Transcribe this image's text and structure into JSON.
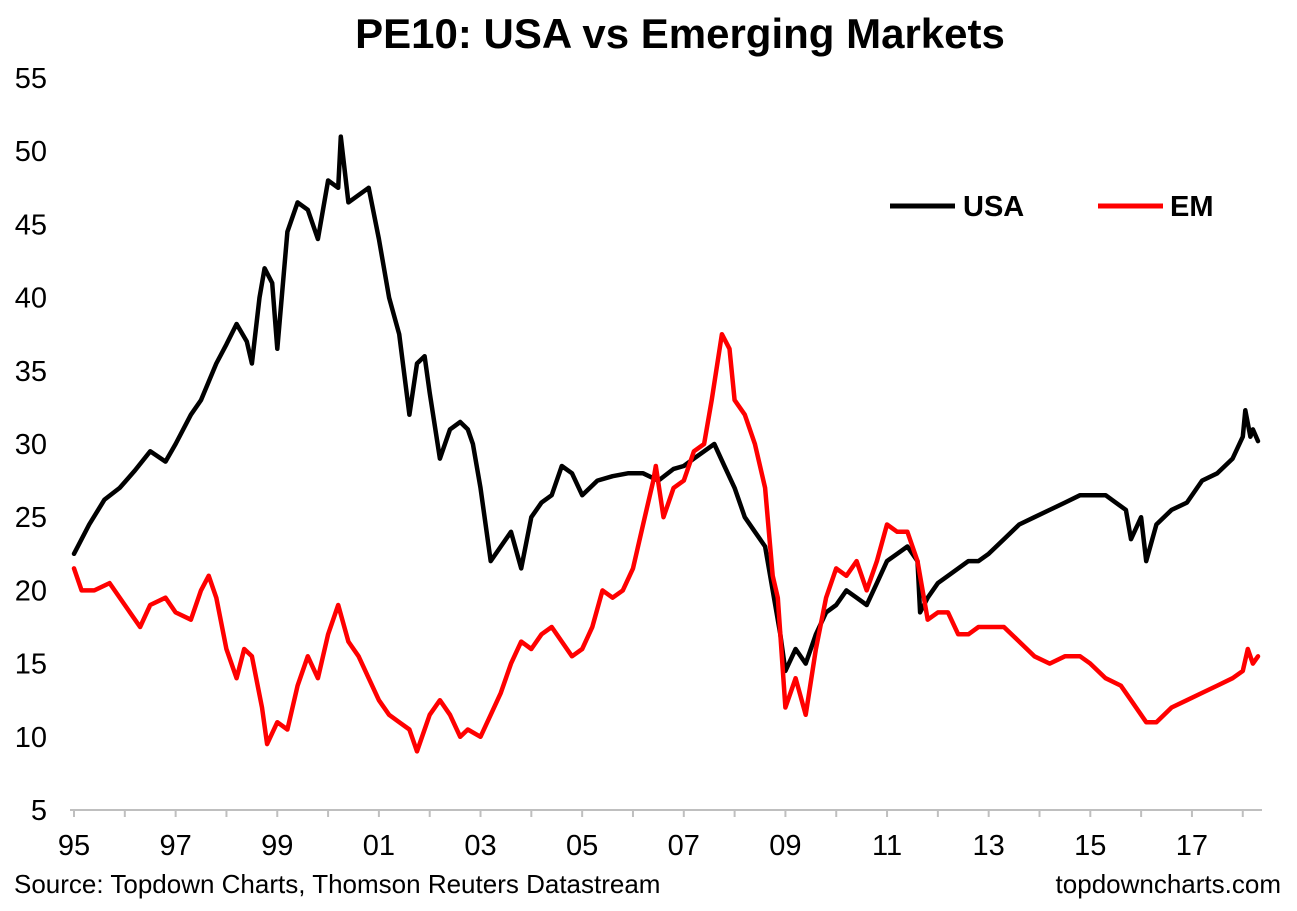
{
  "footer": {
    "source": "Source: Topdown Charts, Thomson Reuters Datastream",
    "brand": "topdowncharts.com"
  },
  "colors": {
    "usa": "#000000",
    "em": "#ff0000",
    "axis": "#bfbfbf",
    "text": "#000000"
  },
  "chart_data": {
    "type": "line",
    "title": "PE10: USA vs Emerging Markets",
    "xlabel": "",
    "ylabel": "",
    "ylim": [
      5,
      55
    ],
    "yticks": [
      "55",
      "50",
      "45",
      "40",
      "35",
      "30",
      "25",
      "20",
      "15",
      "10",
      "5"
    ],
    "xlim": [
      1995,
      2018.3
    ],
    "xticks": [
      {
        "value": 1995,
        "label": "95"
      },
      {
        "value": 1997,
        "label": "97"
      },
      {
        "value": 1999,
        "label": "99"
      },
      {
        "value": 2001,
        "label": "01"
      },
      {
        "value": 2003,
        "label": "03"
      },
      {
        "value": 2005,
        "label": "05"
      },
      {
        "value": 2007,
        "label": "07"
      },
      {
        "value": 2009,
        "label": "09"
      },
      {
        "value": 2011,
        "label": "11"
      },
      {
        "value": 2013,
        "label": "13"
      },
      {
        "value": 2015,
        "label": "15"
      },
      {
        "value": 2017,
        "label": "17"
      }
    ],
    "legend_position": "top-right",
    "series": [
      {
        "name": "USA",
        "color": "#000000",
        "x": [
          1995.0,
          1995.3,
          1995.6,
          1995.9,
          1996.2,
          1996.5,
          1996.8,
          1997.0,
          1997.3,
          1997.5,
          1997.8,
          1998.0,
          1998.2,
          1998.4,
          1998.5,
          1998.65,
          1998.75,
          1998.9,
          1999.0,
          1999.2,
          1999.4,
          1999.6,
          1999.8,
          2000.0,
          2000.2,
          2000.25,
          2000.4,
          2000.6,
          2000.8,
          2001.0,
          2001.2,
          2001.4,
          2001.6,
          2001.75,
          2001.9,
          2002.0,
          2002.2,
          2002.4,
          2002.6,
          2002.75,
          2002.85,
          2003.0,
          2003.2,
          2003.4,
          2003.6,
          2003.8,
          2004.0,
          2004.2,
          2004.4,
          2004.6,
          2004.8,
          2005.0,
          2005.3,
          2005.6,
          2005.9,
          2006.2,
          2006.5,
          2006.8,
          2007.0,
          2007.2,
          2007.4,
          2007.6,
          2007.8,
          2008.0,
          2008.2,
          2008.4,
          2008.6,
          2008.75,
          2008.9,
          2009.0,
          2009.2,
          2009.4,
          2009.6,
          2009.8,
          2010.0,
          2010.2,
          2010.4,
          2010.6,
          2010.8,
          2011.0,
          2011.2,
          2011.4,
          2011.6,
          2011.65,
          2011.8,
          2012.0,
          2012.2,
          2012.4,
          2012.6,
          2012.8,
          2013.0,
          2013.3,
          2013.6,
          2013.9,
          2014.2,
          2014.5,
          2014.8,
          2015.0,
          2015.3,
          2015.5,
          2015.7,
          2015.8,
          2016.0,
          2016.1,
          2016.3,
          2016.6,
          2016.9,
          2017.2,
          2017.5,
          2017.8,
          2018.0,
          2018.05,
          2018.15,
          2018.2,
          2018.3
        ],
        "values": [
          22.5,
          24.5,
          26.2,
          27.0,
          28.2,
          29.5,
          28.8,
          30.0,
          32.0,
          33.0,
          35.5,
          36.8,
          38.2,
          37.0,
          35.5,
          40.0,
          42.0,
          41.0,
          36.5,
          44.5,
          46.5,
          46.0,
          44.0,
          48.0,
          47.5,
          51.0,
          46.5,
          47.0,
          47.5,
          44.0,
          40.0,
          37.5,
          32.0,
          35.5,
          36.0,
          33.5,
          29.0,
          31.0,
          31.5,
          31.0,
          30.0,
          27.0,
          22.0,
          23.0,
          24.0,
          21.5,
          25.0,
          26.0,
          26.5,
          28.5,
          28.0,
          26.5,
          27.5,
          27.8,
          28.0,
          28.0,
          27.5,
          28.3,
          28.5,
          29.0,
          29.5,
          30.0,
          28.5,
          27.0,
          25.0,
          24.0,
          23.0,
          20.0,
          17.0,
          14.5,
          16.0,
          15.0,
          17.0,
          18.5,
          19.0,
          20.0,
          19.5,
          19.0,
          20.5,
          22.0,
          22.5,
          23.0,
          22.0,
          18.5,
          19.5,
          20.5,
          21.0,
          21.5,
          22.0,
          22.0,
          22.5,
          23.5,
          24.5,
          25.0,
          25.5,
          26.0,
          26.5,
          26.5,
          26.5,
          26.0,
          25.5,
          23.5,
          25.0,
          22.0,
          24.5,
          25.5,
          26.0,
          27.5,
          28.0,
          29.0,
          30.5,
          32.3,
          30.5,
          31.0,
          30.2
        ]
      },
      {
        "name": "EM",
        "color": "#ff0000",
        "x": [
          1995.0,
          1995.15,
          1995.4,
          1995.7,
          1996.0,
          1996.3,
          1996.5,
          1996.8,
          1997.0,
          1997.3,
          1997.5,
          1997.65,
          1997.8,
          1998.0,
          1998.2,
          1998.35,
          1998.5,
          1998.7,
          1998.8,
          1999.0,
          1999.2,
          1999.4,
          1999.6,
          1999.8,
          2000.0,
          2000.2,
          2000.4,
          2000.6,
          2000.8,
          2001.0,
          2001.2,
          2001.4,
          2001.6,
          2001.75,
          2001.9,
          2002.0,
          2002.2,
          2002.4,
          2002.6,
          2002.75,
          2003.0,
          2003.2,
          2003.4,
          2003.6,
          2003.8,
          2004.0,
          2004.2,
          2004.4,
          2004.6,
          2004.8,
          2005.0,
          2005.2,
          2005.4,
          2005.6,
          2005.8,
          2006.0,
          2006.2,
          2006.4,
          2006.45,
          2006.6,
          2006.8,
          2007.0,
          2007.2,
          2007.4,
          2007.55,
          2007.75,
          2007.9,
          2008.0,
          2008.2,
          2008.4,
          2008.6,
          2008.75,
          2008.85,
          2009.0,
          2009.2,
          2009.4,
          2009.6,
          2009.8,
          2010.0,
          2010.2,
          2010.4,
          2010.6,
          2010.8,
          2011.0,
          2011.2,
          2011.4,
          2011.6,
          2011.8,
          2012.0,
          2012.2,
          2012.4,
          2012.6,
          2012.8,
          2013.0,
          2013.3,
          2013.6,
          2013.9,
          2014.2,
          2014.5,
          2014.8,
          2015.0,
          2015.3,
          2015.6,
          2015.8,
          2016.0,
          2016.1,
          2016.3,
          2016.6,
          2016.9,
          2017.2,
          2017.5,
          2017.8,
          2018.0,
          2018.1,
          2018.2,
          2018.3
        ],
        "values": [
          21.5,
          20.0,
          20.0,
          20.5,
          19.0,
          17.5,
          19.0,
          19.5,
          18.5,
          18.0,
          20.0,
          21.0,
          19.5,
          16.0,
          14.0,
          16.0,
          15.5,
          12.0,
          9.5,
          11.0,
          10.5,
          13.5,
          15.5,
          14.0,
          17.0,
          19.0,
          16.5,
          15.5,
          14.0,
          12.5,
          11.5,
          11.0,
          10.5,
          9.0,
          10.5,
          11.5,
          12.5,
          11.5,
          10.0,
          10.5,
          10.0,
          11.5,
          13.0,
          15.0,
          16.5,
          16.0,
          17.0,
          17.5,
          16.5,
          15.5,
          16.0,
          17.5,
          20.0,
          19.5,
          20.0,
          21.5,
          24.5,
          27.5,
          28.5,
          25.0,
          27.0,
          27.5,
          29.5,
          30.0,
          33.0,
          37.5,
          36.5,
          33.0,
          32.0,
          30.0,
          27.0,
          21.0,
          19.5,
          12.0,
          14.0,
          11.5,
          16.0,
          19.5,
          21.5,
          21.0,
          22.0,
          20.0,
          22.0,
          24.5,
          24.0,
          24.0,
          22.0,
          18.0,
          18.5,
          18.5,
          17.0,
          17.0,
          17.5,
          17.5,
          17.5,
          16.5,
          15.5,
          15.0,
          15.5,
          15.5,
          15.0,
          14.0,
          13.5,
          12.5,
          11.5,
          11.0,
          11.0,
          12.0,
          12.5,
          13.0,
          13.5,
          14.0,
          14.5,
          16.0,
          15.0,
          15.5
        ]
      }
    ]
  }
}
